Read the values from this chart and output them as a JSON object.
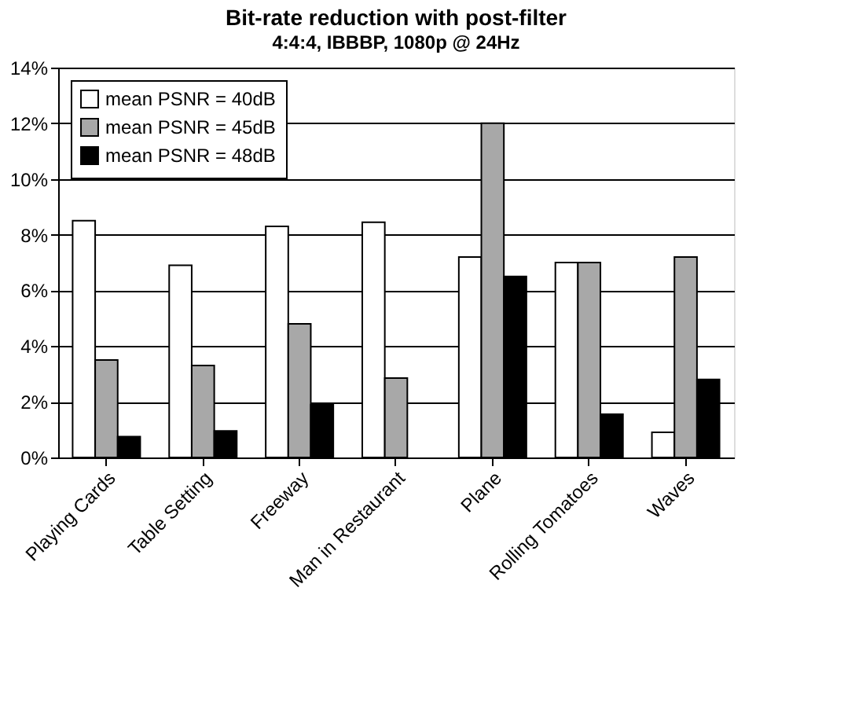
{
  "chart_data": {
    "type": "bar",
    "title": "Bit-rate reduction with post-filter",
    "subtitle": "4:4:4, IBBBP, 1080p @ 24Hz",
    "categories": [
      "Playing Cards",
      "Table Setting",
      "Freeway",
      "Man in Restaurant",
      "Plane",
      "Rolling Tomatoes",
      "Waves"
    ],
    "series": [
      {
        "name": "mean PSNR = 40dB",
        "color": "#ffffff",
        "values": [
          8.5,
          6.9,
          8.3,
          8.45,
          7.2,
          7.0,
          0.9
        ]
      },
      {
        "name": "mean PSNR = 45dB",
        "color": "#a8a8a8",
        "values": [
          3.5,
          3.3,
          4.8,
          2.85,
          12.0,
          7.0,
          7.2
        ]
      },
      {
        "name": "mean PSNR = 48dB",
        "color": "#000000",
        "values": [
          0.75,
          0.95,
          1.9,
          null,
          6.5,
          1.55,
          2.8
        ]
      }
    ],
    "ylim": [
      0,
      14
    ],
    "yticks": [
      {
        "value": 0,
        "label": "0%"
      },
      {
        "value": 2,
        "label": "2%"
      },
      {
        "value": 4,
        "label": "4%"
      },
      {
        "value": 6,
        "label": "6%"
      },
      {
        "value": 8,
        "label": "8%"
      },
      {
        "value": 10,
        "label": "10%"
      },
      {
        "value": 12,
        "label": "12%"
      },
      {
        "value": 14,
        "label": "14%"
      }
    ],
    "grid": "y",
    "legend": "top left"
  }
}
